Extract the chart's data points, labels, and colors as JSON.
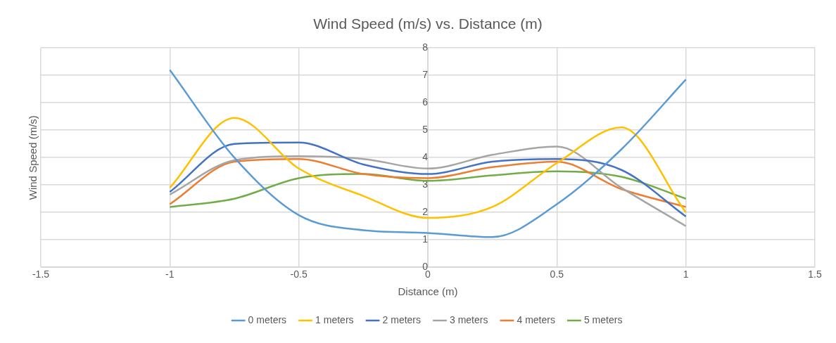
{
  "chart_data": {
    "type": "line",
    "title": "Wind Speed (m/s) vs. Distance (m)",
    "xlabel": "Distance (m)",
    "ylabel": "Wind Speed (m/s)",
    "x": [
      -1,
      -0.75,
      -0.5,
      -0.25,
      0,
      0.25,
      0.5,
      0.75,
      1
    ],
    "xlim": [
      -1.5,
      1.5
    ],
    "xticks": [
      -1.5,
      -1,
      -0.5,
      0,
      0.5,
      1,
      1.5
    ],
    "ylim": [
      0,
      8
    ],
    "yticks": [
      0,
      1,
      2,
      3,
      4,
      5,
      6,
      7,
      8
    ],
    "grid": true,
    "legend": "bottom",
    "marker": "none",
    "line_style": "solid",
    "series": [
      {
        "name": "0 meters",
        "color": "#5b9bd5",
        "values": [
          7.2,
          4.0,
          1.9,
          1.35,
          1.25,
          1.1,
          2.3,
          4.3,
          6.85
        ]
      },
      {
        "name": "1 meters",
        "color": "#ffc000",
        "values": [
          2.9,
          5.45,
          3.6,
          2.6,
          1.8,
          2.2,
          3.8,
          5.1,
          2.0
        ]
      },
      {
        "name": "2 meters",
        "color": "#4472c4",
        "values": [
          2.75,
          4.5,
          4.55,
          3.75,
          3.4,
          3.85,
          3.95,
          3.55,
          1.85
        ]
      },
      {
        "name": "3 meters",
        "color": "#a5a5a5",
        "values": [
          2.65,
          3.9,
          4.05,
          3.95,
          3.6,
          4.1,
          4.4,
          2.9,
          1.5
        ]
      },
      {
        "name": "4 meters",
        "color": "#ed7d31",
        "values": [
          2.3,
          3.85,
          3.95,
          3.4,
          3.25,
          3.65,
          3.85,
          2.85,
          2.2
        ]
      },
      {
        "name": "5 meters",
        "color": "#70ad47",
        "values": [
          2.2,
          2.5,
          3.25,
          3.4,
          3.15,
          3.35,
          3.5,
          3.3,
          2.5
        ]
      }
    ]
  }
}
